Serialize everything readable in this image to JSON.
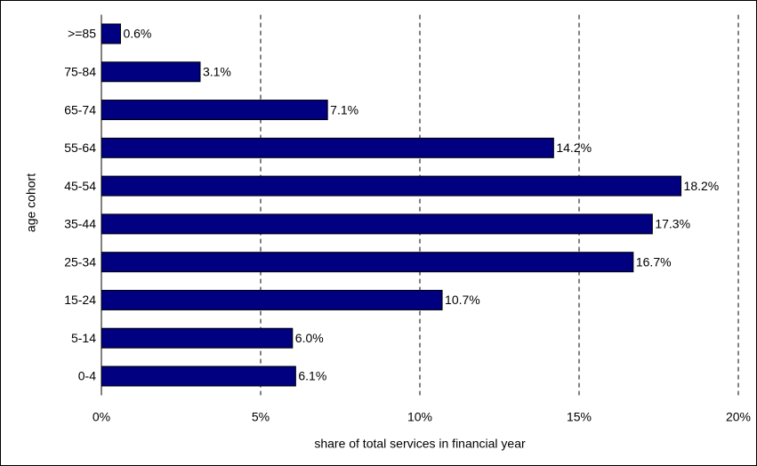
{
  "chart_data": {
    "type": "horizontal-bar",
    "categories": [
      ">=85",
      "75-84",
      "65-74",
      "55-64",
      "45-54",
      "35-44",
      "25-34",
      "15-24",
      "5-14",
      "0-4"
    ],
    "values": [
      0.6,
      3.1,
      7.1,
      14.2,
      18.2,
      17.3,
      16.7,
      10.7,
      6.0,
      6.1
    ],
    "value_labels": [
      "0.6%",
      "3.1%",
      "7.1%",
      "14.2%",
      "18.2%",
      "17.3%",
      "16.7%",
      "10.7%",
      "6.0%",
      "6.1%"
    ],
    "color": "#000080",
    "xlim": [
      0,
      20
    ],
    "xticks": [
      {
        "value": 0,
        "label": "0%"
      },
      {
        "value": 5,
        "label": "5%"
      },
      {
        "value": 10,
        "label": "10%"
      },
      {
        "value": 15,
        "label": "15%"
      },
      {
        "value": 20,
        "label": "20%"
      }
    ],
    "grid": true,
    "x_label": "share of total services in financial year",
    "y_label": "age cohort"
  }
}
